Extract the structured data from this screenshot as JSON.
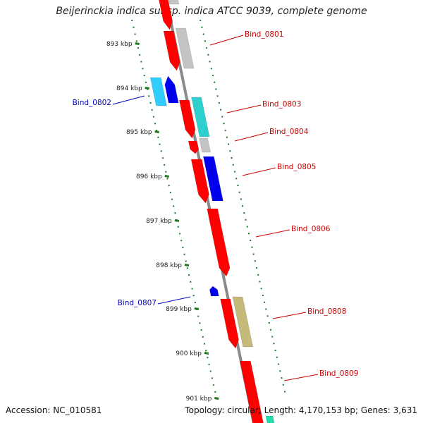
{
  "title": "Beijerinckia indica subsp. indica ATCC 9039, complete genome",
  "accession_text": "Accession: NC_010581",
  "summary_text": "Topology: circular; Length: 4,170,153 bp; Genes: 3,631",
  "colors": {
    "backbone": "#8a8a8a",
    "ruler": "#1f7a1f",
    "label_red": "#cc0000",
    "label_blue": "#0000bb"
  },
  "kbp_labels": [
    "893 kbp",
    "894 kbp",
    "895 kbp",
    "896 kbp",
    "897 kbp",
    "898 kbp",
    "899 kbp",
    "900 kbp",
    "901 kbp"
  ],
  "gene_labels": [
    "Bind_0801",
    "Bind_0802",
    "Bind_0803",
    "Bind_0804",
    "Bind_0805",
    "Bind_0806",
    "Bind_0807",
    "Bind_0808",
    "Bind_0809"
  ],
  "feature_colors": {
    "cds_red": "#ff0000",
    "gray": "#c4c4c4",
    "cyan": "#2ecfcf",
    "lightblue": "#33ccff",
    "blue": "#0000ee",
    "olive": "#c4bb7a",
    "teal": "#22ddaa"
  }
}
